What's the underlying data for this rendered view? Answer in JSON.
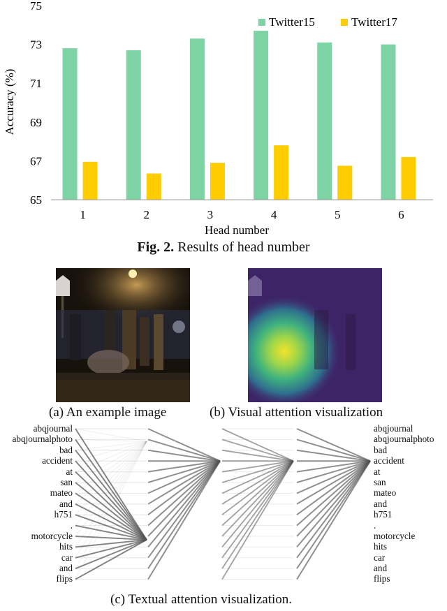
{
  "chart_data": {
    "type": "bar",
    "xlabel": "Head number",
    "ylabel": "Accuracy (%)",
    "categories": [
      "1",
      "2",
      "3",
      "4",
      "5",
      "6"
    ],
    "ylim": [
      65,
      75
    ],
    "yticks": [
      "65",
      "67",
      "69",
      "71",
      "73",
      "75"
    ],
    "grid": false,
    "legend_position": "top-right",
    "series": [
      {
        "name": "Twitter15",
        "color": "#7dd3a3",
        "values": [
          72.8,
          72.7,
          73.3,
          73.7,
          73.1,
          73.0
        ]
      },
      {
        "name": "Twitter17",
        "color": "#ffcc00",
        "values": [
          66.95,
          66.35,
          66.9,
          67.8,
          66.75,
          67.2
        ]
      }
    ]
  },
  "figure": {
    "caption_label": "Fig. 2.",
    "caption_text": " Results of head number"
  },
  "subfigures": {
    "a_label": "(a) An example image",
    "b_label": "(b) Visual attention visualization",
    "c_label": "(c) Textual attention visualization."
  },
  "tokens": [
    "abqjournal",
    "abqjournalphoto",
    "bad",
    "accident",
    "at",
    "san",
    "mateo",
    "and",
    "h751",
    ".",
    "motorcycle",
    "hits",
    "car",
    "and",
    "flips"
  ]
}
